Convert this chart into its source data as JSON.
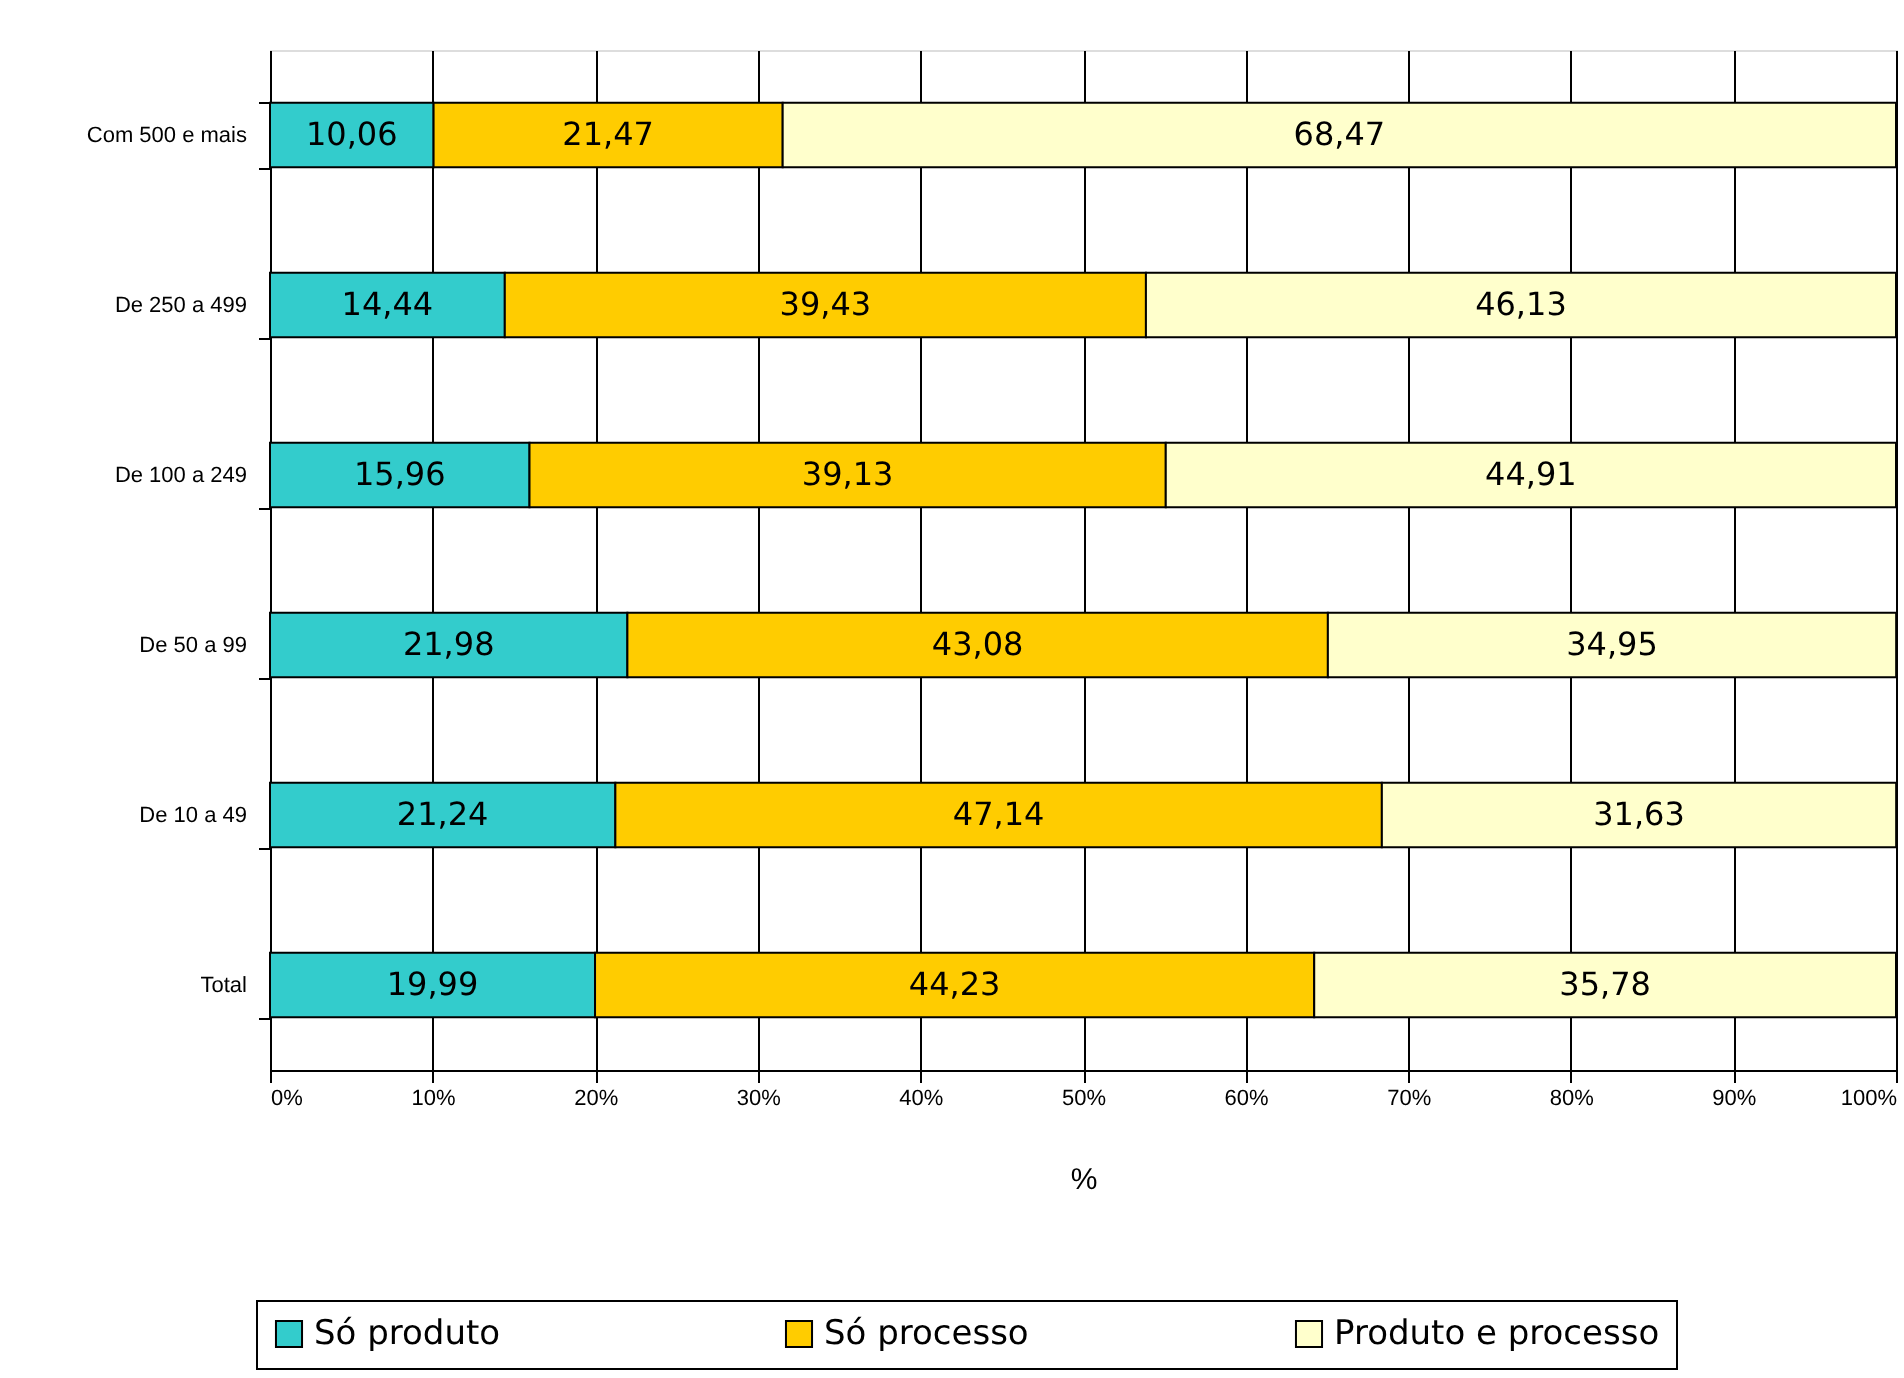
{
  "chart_data": {
    "type": "bar",
    "orientation": "horizontal",
    "stacked": true,
    "xlabel": "%",
    "categories": [
      "Com 500 e mais",
      "De 250 a 499",
      "De 100 a 249",
      "De 50 a 99",
      "De 10 a 49",
      "Total"
    ],
    "series": [
      {
        "name": "Só produto",
        "color": "#33cccc",
        "values": [
          10.06,
          14.44,
          15.96,
          21.98,
          21.24,
          19.99
        ],
        "value_labels": [
          "10,06",
          "14,44",
          "15,96",
          "21,98",
          "21,24",
          "19,99"
        ]
      },
      {
        "name": "Só processo",
        "color": "#ffcc00",
        "values": [
          21.47,
          39.43,
          39.13,
          43.08,
          47.14,
          44.23
        ],
        "value_labels": [
          "21,47",
          "39,43",
          "39,13",
          "43,08",
          "47,14",
          "44,23"
        ]
      },
      {
        "name": "Produto e processo",
        "color": "#ffffcc",
        "values": [
          68.47,
          46.13,
          44.91,
          34.95,
          31.63,
          35.78
        ],
        "value_labels": [
          "68,47",
          "46,13",
          "44,91",
          "34,95",
          "31,63",
          "35,78"
        ]
      }
    ],
    "xlim": [
      0,
      100
    ],
    "xticks": [
      {
        "value": 0,
        "label": "0%"
      },
      {
        "value": 10,
        "label": "10%"
      },
      {
        "value": 20,
        "label": "20%"
      },
      {
        "value": 30,
        "label": "30%"
      },
      {
        "value": 40,
        "label": "40%"
      },
      {
        "value": 50,
        "label": "50%"
      },
      {
        "value": 60,
        "label": "60%"
      },
      {
        "value": 70,
        "label": "70%"
      },
      {
        "value": 80,
        "label": "80%"
      },
      {
        "value": 90,
        "label": "90%"
      },
      {
        "value": 100,
        "label": "100%"
      }
    ],
    "grid": "x",
    "legend": "bottom"
  }
}
